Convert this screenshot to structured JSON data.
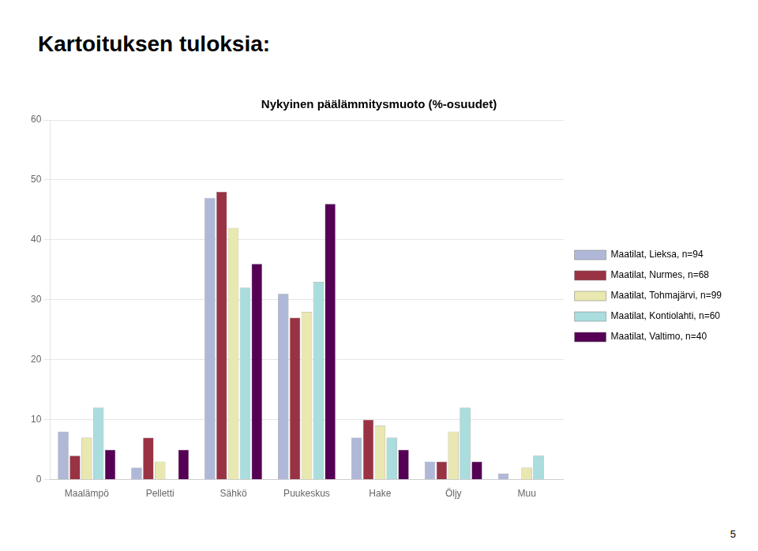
{
  "page_title": "Kartoituksen tuloksia:",
  "page_number": 5,
  "chart_data": {
    "type": "bar",
    "title": "Nykyinen päälämmitysmuoto (%-osuudet)",
    "categories": [
      "Maalämpö",
      "Pelletti",
      "Sähkö",
      "Puukeskus",
      "Hake",
      "Öljy",
      "Muu"
    ],
    "series": [
      {
        "name": "Maatilat, Lieksa, n=94",
        "color": "#b0b8d8",
        "values": [
          8,
          2,
          47,
          31,
          7,
          3,
          1
        ]
      },
      {
        "name": "Maatilat, Nurmes, n=68",
        "color": "#993344",
        "values": [
          4,
          7,
          48,
          27,
          10,
          3,
          0
        ]
      },
      {
        "name": "Maatilat, Tohmajärvi, n=99",
        "color": "#e8e8b0",
        "values": [
          7,
          3,
          42,
          28,
          9,
          8,
          2
        ]
      },
      {
        "name": "Maatilat, Kontiolahti, n=60",
        "color": "#aadddd",
        "values": [
          12,
          0,
          32,
          33,
          7,
          12,
          4
        ]
      },
      {
        "name": "Maatilat, Valtimo, n=40",
        "color": "#550055",
        "values": [
          5,
          5,
          36,
          46,
          5,
          3,
          0
        ]
      }
    ],
    "ylim": [
      0,
      60
    ],
    "yticks": [
      0,
      10,
      20,
      30,
      40,
      50,
      60
    ],
    "grid": true,
    "legend": "right"
  }
}
